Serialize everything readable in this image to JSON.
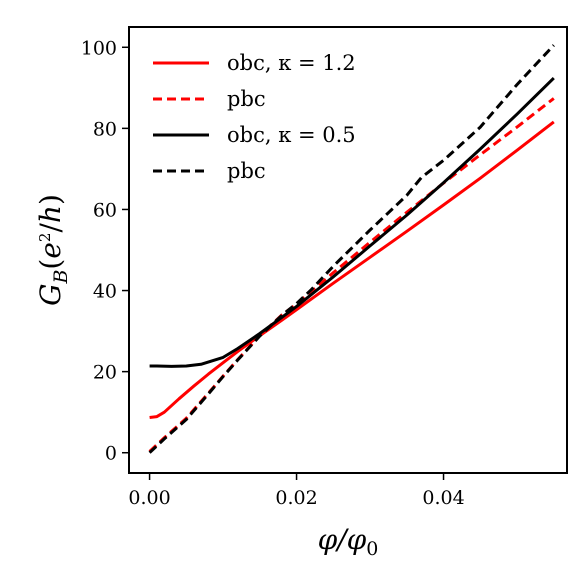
{
  "chart_data": {
    "type": "line",
    "xlabel": "φ/φ0",
    "ylabel": "G_B(e²/h)",
    "xlim": [
      -0.0028,
      0.0568
    ],
    "ylim": [
      -5,
      105
    ],
    "xticks": [
      0.0,
      0.02,
      0.04
    ],
    "xtick_labels": [
      "0.00",
      "0.02",
      "0.04"
    ],
    "yticks": [
      0,
      20,
      40,
      60,
      80,
      100
    ],
    "ytick_labels": [
      "0",
      "20",
      "40",
      "60",
      "80",
      "100"
    ],
    "grid": false,
    "legend_position": "top-left",
    "series": [
      {
        "name": "obc, κ = 1.2",
        "color": "#ff0000",
        "dash": "solid",
        "x": [
          0.0,
          0.001,
          0.002,
          0.004,
          0.006,
          0.008,
          0.01,
          0.012,
          0.015,
          0.018,
          0.02,
          0.025,
          0.03,
          0.035,
          0.04,
          0.045,
          0.05,
          0.055
        ],
        "y": [
          8.7,
          8.9,
          10.0,
          13.3,
          16.4,
          19.4,
          22.2,
          25.0,
          28.9,
          32.7,
          35.3,
          41.8,
          48.2,
          54.6,
          61.1,
          67.7,
          74.6,
          81.6
        ]
      },
      {
        "name": "pbc",
        "color": "#ff0000",
        "dash": "dashed",
        "x": [
          0.0,
          0.002,
          0.005,
          0.008,
          0.01,
          0.012,
          0.015,
          0.018,
          0.02,
          0.022,
          0.025,
          0.03,
          0.035,
          0.04,
          0.045,
          0.05,
          0.055
        ],
        "y": [
          0.3,
          3.7,
          8.5,
          14.7,
          18.9,
          23.0,
          28.9,
          34.0,
          36.7,
          39.8,
          44.4,
          51.9,
          59.3,
          66.5,
          73.5,
          80.3,
          87.4
        ]
      },
      {
        "name": "obc, κ = 0.5",
        "color": "#000000",
        "dash": "solid",
        "x": [
          0.0,
          0.001,
          0.003,
          0.005,
          0.007,
          0.01,
          0.012,
          0.015,
          0.018,
          0.02,
          0.025,
          0.03,
          0.035,
          0.04,
          0.045,
          0.05,
          0.055
        ],
        "y": [
          21.4,
          21.4,
          21.3,
          21.4,
          21.8,
          23.5,
          25.7,
          29.4,
          33.4,
          36.1,
          43.4,
          51.0,
          58.6,
          66.6,
          74.9,
          83.5,
          92.4
        ]
      },
      {
        "name": "pbc",
        "color": "#000000",
        "dash": "dashed",
        "x": [
          0.0,
          0.002,
          0.005,
          0.008,
          0.01,
          0.012,
          0.015,
          0.018,
          0.02,
          0.022,
          0.025,
          0.03,
          0.035,
          0.037,
          0.04,
          0.045,
          0.05,
          0.055
        ],
        "y": [
          0.0,
          3.4,
          8.2,
          14.5,
          18.8,
          22.9,
          28.8,
          33.9,
          36.8,
          40.2,
          46.0,
          54.9,
          63.5,
          67.9,
          72.1,
          80.3,
          90.8,
          100.5
        ]
      }
    ]
  }
}
